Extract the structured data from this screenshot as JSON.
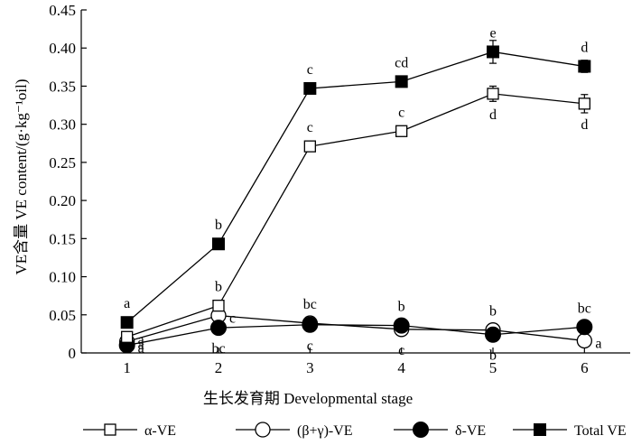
{
  "chart_data": {
    "type": "line",
    "xlabel": "生长发育期 Developmental stage",
    "ylabel": "VE含量 VE content/(g·kg⁻¹oil)",
    "x": [
      1,
      2,
      3,
      4,
      5,
      6
    ],
    "xlim": [
      0.5,
      6.5
    ],
    "ylim": [
      0,
      0.45
    ],
    "yticks": [
      0,
      0.05,
      0.1,
      0.15,
      0.2,
      0.25,
      0.3,
      0.35,
      0.4,
      0.45
    ],
    "ytick_labels": [
      "0",
      "0.05",
      "0.10",
      "0.15",
      "0.20",
      "0.25",
      "0.30",
      "0.35",
      "0.40",
      "0.45"
    ],
    "xtick_labels": [
      "1",
      "2",
      "3",
      "4",
      "5",
      "6"
    ],
    "grid": false,
    "legend_position": "bottom",
    "series": [
      {
        "name": "α-VE",
        "marker": "open-square",
        "values": [
          0.021,
          0.062,
          0.271,
          0.291,
          0.34,
          0.327
        ],
        "errors": [
          0.003,
          0.004,
          0.005,
          0.004,
          0.01,
          0.012
        ],
        "labels": [
          "a",
          "b",
          "c",
          "c",
          "d",
          "d"
        ],
        "label_side": [
          "right",
          "above",
          "above",
          "above",
          "below",
          "below"
        ]
      },
      {
        "name": "(β+γ)-VE",
        "marker": "open-circle",
        "values": [
          0.015,
          0.049,
          0.039,
          0.031,
          0.03,
          0.016
        ],
        "errors": [
          0.002,
          0.003,
          0.003,
          0.003,
          0.003,
          0.002
        ],
        "labels": [
          "a",
          "c",
          "bc",
          "c",
          "b",
          "a"
        ],
        "label_side": [
          "right",
          "right",
          "above",
          "below",
          "above",
          "right"
        ]
      },
      {
        "name": "δ-VE",
        "marker": "filled-circle",
        "values": [
          0.01,
          0.033,
          0.037,
          0.036,
          0.024,
          0.034
        ],
        "errors": [
          0.002,
          0.003,
          0.003,
          0.003,
          0.003,
          0.003
        ],
        "labels": [
          "a",
          "bc",
          "c",
          "b",
          "b",
          "bc"
        ],
        "label_side": [
          "right",
          "below",
          "below",
          "above",
          "below",
          "above"
        ]
      },
      {
        "name": "Total VE",
        "marker": "filled-square",
        "values": [
          0.04,
          0.143,
          0.347,
          0.356,
          0.395,
          0.376
        ],
        "errors": [
          0.003,
          0.004,
          0.004,
          0.004,
          0.015,
          0.008
        ],
        "labels": [
          "a",
          "b",
          "c",
          "cd",
          "e",
          "d"
        ],
        "label_side": [
          "above",
          "above",
          "above",
          "above",
          "above",
          "above"
        ]
      }
    ]
  }
}
